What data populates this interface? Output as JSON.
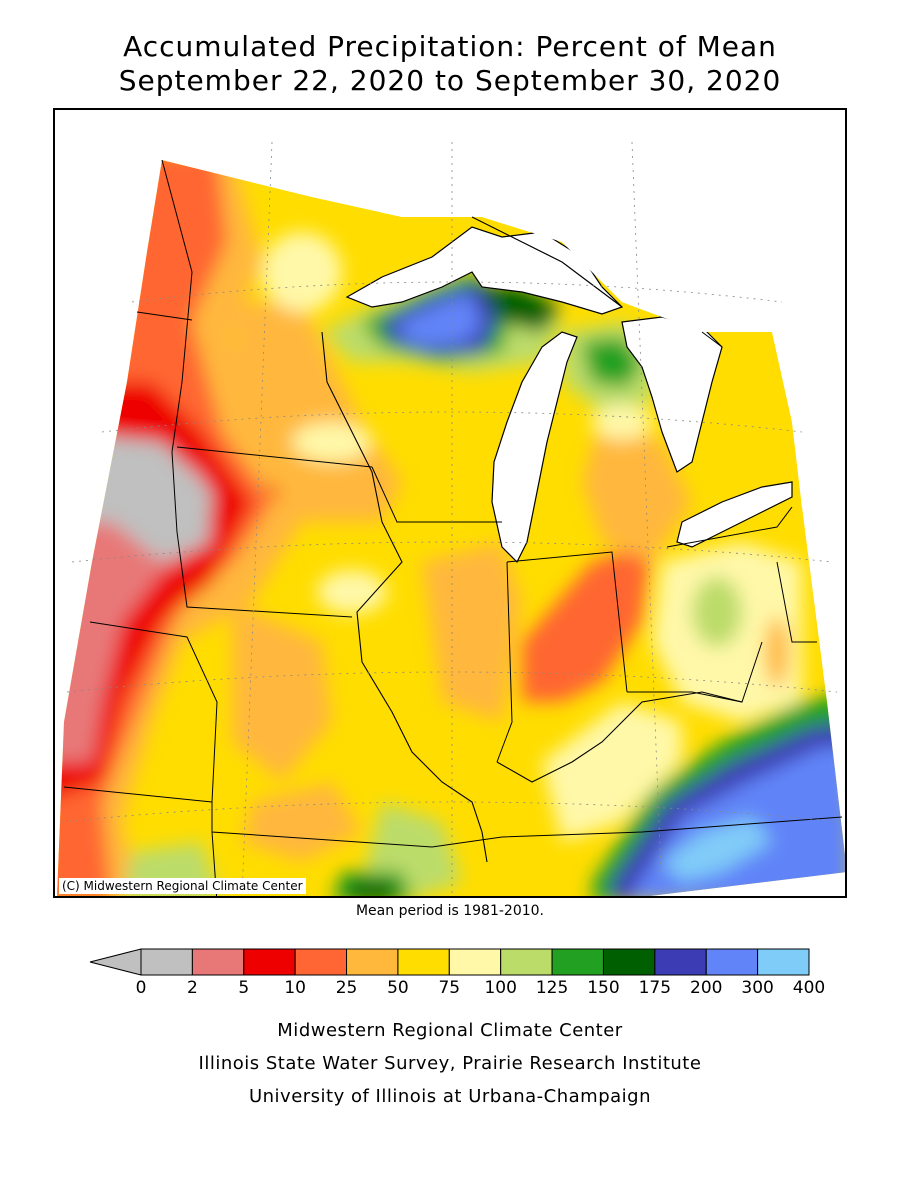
{
  "title_line1": "Accumulated Precipitation: Percent of Mean",
  "title_line2": "September 22, 2020 to September 30, 2020",
  "copyright": "(C) Midwestern Regional Climate Center",
  "mean_note": "Mean period is 1981-2010.",
  "legend": {
    "below_color": "#c0c0c0",
    "bins": [
      {
        "from": "0",
        "to": "2",
        "color": "#c0c0c0"
      },
      {
        "from": "2",
        "to": "5",
        "color": "#e87878"
      },
      {
        "from": "5",
        "to": "10",
        "color": "#ee0000"
      },
      {
        "from": "10",
        "to": "25",
        "color": "#ff6633"
      },
      {
        "from": "25",
        "to": "50",
        "color": "#ffb83c"
      },
      {
        "from": "50",
        "to": "75",
        "color": "#ffdd00"
      },
      {
        "from": "75",
        "to": "100",
        "color": "#fff8a8"
      },
      {
        "from": "100",
        "to": "125",
        "color": "#bcdc6a"
      },
      {
        "from": "125",
        "to": "150",
        "color": "#22a022"
      },
      {
        "from": "150",
        "to": "175",
        "color": "#005f00"
      },
      {
        "from": "175",
        "to": "200",
        "color": "#3c3cb4"
      },
      {
        "from": "200",
        "to": "300",
        "color": "#6184f8"
      },
      {
        "from": "300",
        "to": "400",
        "color": "#80ccf8"
      }
    ],
    "tick_labels": [
      "0",
      "2",
      "5",
      "10",
      "25",
      "50",
      "75",
      "100",
      "125",
      "150",
      "175",
      "200",
      "300",
      "400"
    ]
  },
  "footer": {
    "line1": "Midwestern Regional Climate Center",
    "line2": "Illinois State Water Survey, Prairie Research Institute",
    "line3": "University of Illinois at Urbana-Champaign"
  }
}
